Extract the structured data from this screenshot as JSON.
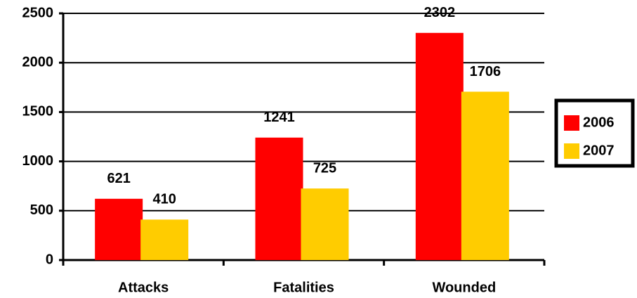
{
  "chart_data": {
    "type": "bar",
    "categories": [
      "Attacks",
      "Fatalities",
      "Wounded"
    ],
    "series": [
      {
        "name": "2006",
        "color": "#ff0000",
        "values": [
          621,
          1241,
          2302
        ]
      },
      {
        "name": "2007",
        "color": "#ffcc00",
        "values": [
          410,
          725,
          1706
        ]
      }
    ],
    "ylim": [
      0,
      2500
    ],
    "yticks": [
      0,
      500,
      1000,
      1500,
      2000,
      2500
    ],
    "grid": true,
    "legend": "right"
  }
}
